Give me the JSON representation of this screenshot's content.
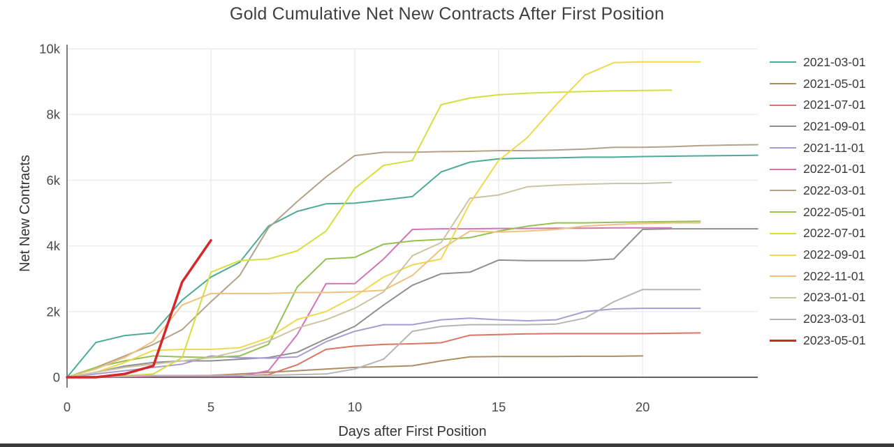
{
  "title": "Gold Cumulative Net New Contracts After First Position",
  "chart_data": {
    "type": "line",
    "title": "Gold Cumulative Net New Contracts After First Position",
    "xlabel": "Days after First Position",
    "ylabel": "Net New Contracts",
    "xlim": [
      0,
      24.5
    ],
    "ylim": [
      0,
      10000
    ],
    "grid": true,
    "legend_position": "right",
    "x_ticks": [
      0,
      5,
      10,
      15,
      20
    ],
    "y_ticks": [
      {
        "value": 0,
        "label": "0"
      },
      {
        "value": 2000,
        "label": "2k"
      },
      {
        "value": 4000,
        "label": "4k"
      },
      {
        "value": 6000,
        "label": "6k"
      },
      {
        "value": 8000,
        "label": "8k"
      },
      {
        "value": 10000,
        "label": "10k"
      }
    ],
    "x_is_day_index": true,
    "series": [
      {
        "name": "2021-03-01",
        "color": "#4cab96",
        "width": 2,
        "values": [
          0,
          1060,
          1270,
          1350,
          2350,
          3050,
          3500,
          4600,
          5050,
          5280,
          5300,
          5400,
          5500,
          6250,
          6550,
          6650,
          6670,
          6680,
          6700,
          6700,
          6720,
          6730,
          6740,
          6750,
          6760
        ]
      },
      {
        "name": "2021-05-01",
        "color": "#ae8d60",
        "width": 2,
        "values": [
          0,
          20,
          30,
          50,
          50,
          60,
          100,
          150,
          200,
          250,
          300,
          320,
          350,
          500,
          620,
          630,
          630,
          630,
          640,
          640,
          650
        ]
      },
      {
        "name": "2021-07-01",
        "color": "#dc7460",
        "width": 2,
        "values": [
          0,
          20,
          50,
          50,
          50,
          50,
          50,
          80,
          380,
          850,
          950,
          1000,
          1020,
          1050,
          1280,
          1300,
          1320,
          1330,
          1330,
          1330,
          1330,
          1340,
          1350
        ]
      },
      {
        "name": "2021-09-01",
        "color": "#8f8f8f",
        "width": 2,
        "values": [
          0,
          150,
          340,
          450,
          500,
          500,
          550,
          600,
          760,
          1170,
          1550,
          2200,
          2800,
          3150,
          3200,
          3570,
          3550,
          3550,
          3550,
          3600,
          4500,
          4520,
          4520,
          4520,
          4520
        ]
      },
      {
        "name": "2021-11-01",
        "color": "#a99bd0",
        "width": 2,
        "values": [
          0,
          100,
          200,
          300,
          400,
          650,
          600,
          580,
          620,
          1080,
          1400,
          1600,
          1600,
          1750,
          1800,
          1750,
          1720,
          1750,
          2000,
          2080,
          2100,
          2100,
          2100
        ]
      },
      {
        "name": "2022-01-01",
        "color": "#d473b6",
        "width": 2,
        "values": [
          0,
          10,
          20,
          30,
          30,
          30,
          30,
          200,
          1300,
          2850,
          2850,
          3600,
          4500,
          4520,
          4520,
          4530,
          4530,
          4540,
          4540,
          4550,
          4550,
          4550
        ]
      },
      {
        "name": "2022-03-01",
        "color": "#b3a28a",
        "width": 2,
        "values": [
          0,
          300,
          650,
          1000,
          1450,
          2300,
          3100,
          4550,
          5350,
          6100,
          6750,
          6850,
          6850,
          6870,
          6880,
          6900,
          6900,
          6920,
          6950,
          7000,
          7000,
          7020,
          7050,
          7070,
          7080
        ]
      },
      {
        "name": "2022-05-01",
        "color": "#93c152",
        "width": 2,
        "values": [
          0,
          300,
          500,
          650,
          620,
          600,
          650,
          1000,
          2750,
          3600,
          3650,
          4050,
          4150,
          4200,
          4250,
          4450,
          4600,
          4700,
          4700,
          4720,
          4730,
          4740,
          4750
        ]
      },
      {
        "name": "2022-07-01",
        "color": "#d6de3b",
        "width": 2,
        "values": [
          0,
          20,
          50,
          100,
          600,
          3200,
          3550,
          3600,
          3850,
          4450,
          5750,
          6450,
          6600,
          8300,
          8500,
          8600,
          8650,
          8680,
          8700,
          8720,
          8730,
          8740
        ]
      },
      {
        "name": "2022-09-01",
        "color": "#eed94e",
        "width": 2,
        "values": [
          0,
          150,
          450,
          820,
          850,
          850,
          900,
          1200,
          1760,
          2000,
          2460,
          3050,
          3420,
          3600,
          5300,
          6600,
          7300,
          8300,
          9200,
          9580,
          9600,
          9600,
          9600
        ]
      },
      {
        "name": "2022-11-01",
        "color": "#efc17f",
        "width": 2,
        "values": [
          0,
          250,
          600,
          1100,
          2200,
          2550,
          2550,
          2550,
          2580,
          2580,
          2600,
          2650,
          3100,
          3900,
          4450,
          4420,
          4450,
          4500,
          4600,
          4650,
          4680,
          4700,
          4700
        ]
      },
      {
        "name": "2023-01-01",
        "color": "#ccc3a3",
        "width": 2,
        "values": [
          0,
          150,
          300,
          400,
          500,
          600,
          800,
          1100,
          1500,
          1750,
          2100,
          2600,
          3700,
          4100,
          5450,
          5550,
          5800,
          5850,
          5880,
          5900,
          5900,
          5930
        ]
      },
      {
        "name": "2023-03-01",
        "color": "#b5b5b5",
        "width": 2,
        "values": [
          0,
          20,
          30,
          50,
          50,
          50,
          60,
          60,
          80,
          100,
          250,
          550,
          1400,
          1550,
          1600,
          1600,
          1600,
          1620,
          1800,
          2300,
          2670,
          2670,
          2670
        ]
      },
      {
        "name": "2023-05-01",
        "color": "#d62728",
        "width": 3.5,
        "values": [
          0,
          0,
          100,
          350,
          2900,
          4170
        ]
      }
    ]
  },
  "style": {
    "grid_color": "#ebebeb",
    "zero_line_color": "#2f2f2f",
    "y_axis_line_color": "#808080",
    "tick_label_color": "#4a4a4a",
    "bottom_bar_color": "#3b3b3b"
  }
}
